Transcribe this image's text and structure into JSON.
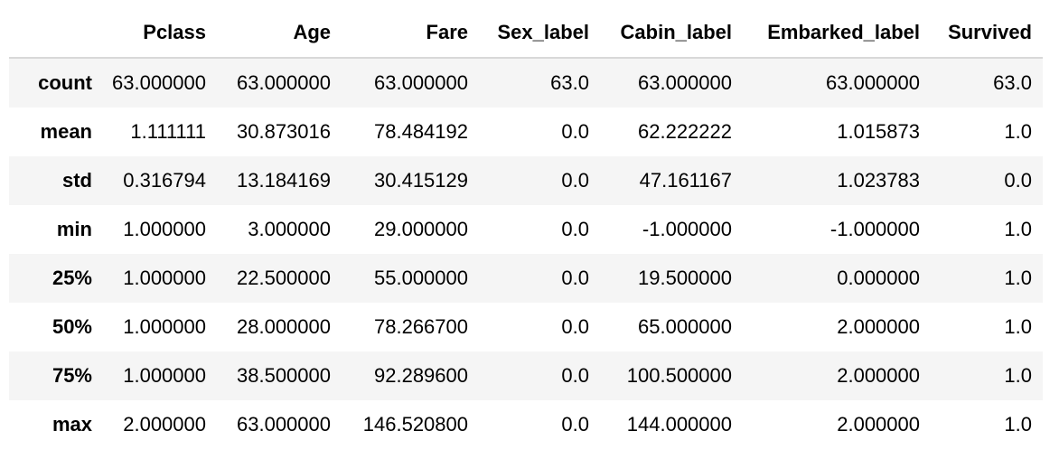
{
  "table": {
    "columns": [
      "",
      "Pclass",
      "Age",
      "Fare",
      "Sex_label",
      "Cabin_label",
      "Embarked_label",
      "Survived"
    ],
    "rows": [
      {
        "label": "count",
        "values": [
          "63.000000",
          "63.000000",
          "63.000000",
          "63.0",
          "63.000000",
          "63.000000",
          "63.0"
        ]
      },
      {
        "label": "mean",
        "values": [
          "1.111111",
          "30.873016",
          "78.484192",
          "0.0",
          "62.222222",
          "1.015873",
          "1.0"
        ]
      },
      {
        "label": "std",
        "values": [
          "0.316794",
          "13.184169",
          "30.415129",
          "0.0",
          "47.161167",
          "1.023783",
          "0.0"
        ]
      },
      {
        "label": "min",
        "values": [
          "1.000000",
          "3.000000",
          "29.000000",
          "0.0",
          "-1.000000",
          "-1.000000",
          "1.0"
        ]
      },
      {
        "label": "25%",
        "values": [
          "1.000000",
          "22.500000",
          "55.000000",
          "0.0",
          "19.500000",
          "0.000000",
          "1.0"
        ]
      },
      {
        "label": "50%",
        "values": [
          "1.000000",
          "28.000000",
          "78.266700",
          "0.0",
          "65.000000",
          "2.000000",
          "1.0"
        ]
      },
      {
        "label": "75%",
        "values": [
          "1.000000",
          "38.500000",
          "92.289600",
          "0.0",
          "100.500000",
          "2.000000",
          "1.0"
        ]
      },
      {
        "label": "max",
        "values": [
          "2.000000",
          "63.000000",
          "146.520800",
          "0.0",
          "144.000000",
          "2.000000",
          "1.0"
        ]
      }
    ]
  }
}
